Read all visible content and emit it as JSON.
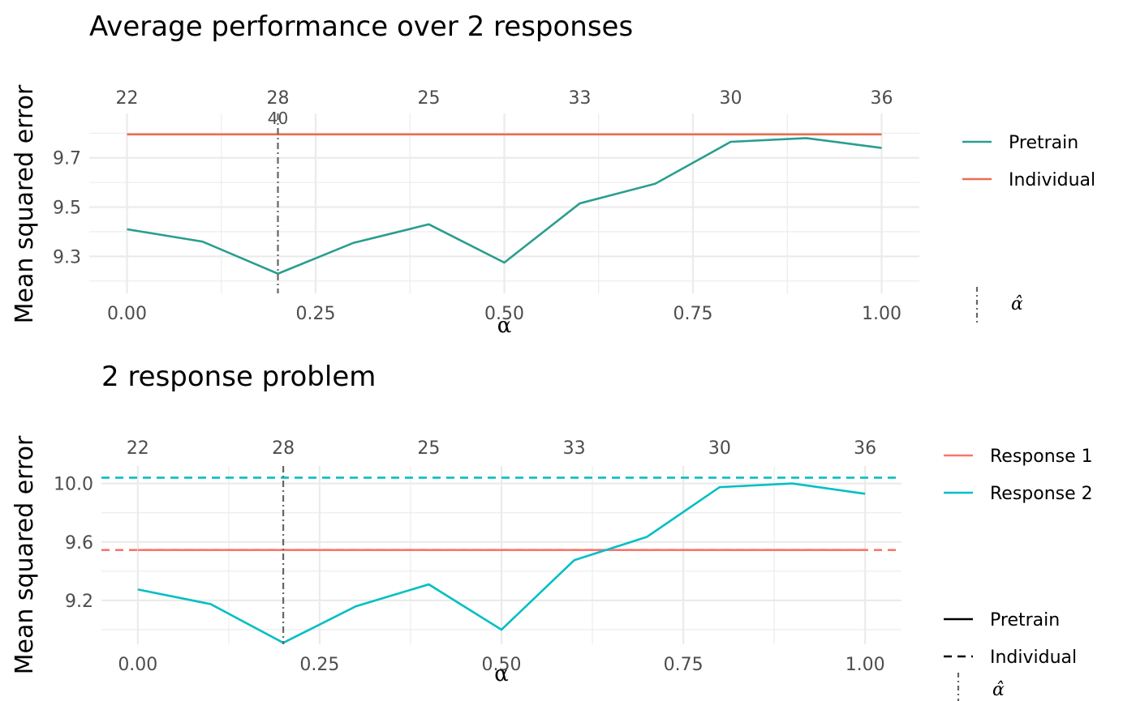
{
  "chart_data": [
    {
      "type": "line",
      "title": "Average performance over 2 responses",
      "xlabel": "α",
      "ylabel": "Mean squared error",
      "xlim": [
        -0.05,
        1.05
      ],
      "ylim": [
        9.15,
        9.88
      ],
      "x_ticks": [
        "0.00",
        "0.25",
        "0.50",
        "0.75",
        "1.00"
      ],
      "x_tick_values": [
        0,
        0.25,
        0.5,
        0.75,
        1.0
      ],
      "y_ticks": [
        "9.3",
        "9.5",
        "9.7"
      ],
      "y_tick_values": [
        9.3,
        9.5,
        9.7
      ],
      "top_axis_labels": [
        "22",
        "28",
        "25",
        "33",
        "30",
        "36"
      ],
      "top_axis_values": [
        0,
        0.2,
        0.4,
        0.6,
        0.8,
        1.0
      ],
      "grid": true,
      "x": [
        0,
        0.1,
        0.2,
        0.3,
        0.4,
        0.5,
        0.6,
        0.7,
        0.8,
        0.9,
        1.0
      ],
      "series": [
        {
          "name": "Pretrain",
          "color": "#2a9d8f",
          "dash": "solid",
          "values": [
            9.41,
            9.36,
            9.23,
            9.355,
            9.43,
            9.275,
            9.515,
            9.595,
            9.765,
            9.78,
            9.74
          ]
        },
        {
          "name": "Individual",
          "color": "#e76f51",
          "dash": "solid",
          "values": [
            9.795,
            9.795,
            9.795,
            9.795,
            9.795,
            9.795,
            9.795,
            9.795,
            9.795,
            9.795,
            9.795
          ]
        }
      ],
      "vline": {
        "x": 0.2,
        "label": "40",
        "legend_label": "α̂",
        "color": "#666666"
      },
      "legend_placement": "right",
      "legend": [
        {
          "label": "Pretrain",
          "color": "#2a9d8f",
          "style": "solid"
        },
        {
          "label": "Individual",
          "color": "#e76f51",
          "style": "solid"
        }
      ]
    },
    {
      "type": "line",
      "title": "2 response problem",
      "xlabel": "α",
      "ylabel": "Mean squared error",
      "xlim": [
        -0.05,
        1.05
      ],
      "ylim": [
        8.9,
        10.12
      ],
      "x_ticks": [
        "0.00",
        "0.25",
        "0.50",
        "0.75",
        "1.00"
      ],
      "x_tick_values": [
        0,
        0.25,
        0.5,
        0.75,
        1.0
      ],
      "y_ticks": [
        "9.2",
        "9.6",
        "10.0"
      ],
      "y_tick_values": [
        9.2,
        9.6,
        10.0
      ],
      "top_axis_labels": [
        "22",
        "28",
        "25",
        "33",
        "30",
        "36"
      ],
      "top_axis_values": [
        0,
        0.2,
        0.4,
        0.6,
        0.8,
        1.0
      ],
      "grid": true,
      "x": [
        0,
        0.1,
        0.2,
        0.3,
        0.4,
        0.5,
        0.6,
        0.7,
        0.8,
        0.9,
        1.0
      ],
      "series": [
        {
          "name": "Response 1 Pretrain",
          "color": "#f8766d",
          "dash": "solid",
          "values": [
            9.545,
            9.545,
            9.545,
            9.545,
            9.545,
            9.545,
            9.545,
            9.545,
            9.545,
            9.545,
            9.545
          ]
        },
        {
          "name": "Response 1 Individual",
          "color": "#f8766d",
          "dash": "dashed",
          "values": [
            9.545,
            9.545,
            9.545,
            9.545,
            9.545,
            9.545,
            9.545,
            9.545,
            9.545,
            9.545,
            9.545
          ]
        },
        {
          "name": "Response 2 Pretrain",
          "color": "#00bfc4",
          "dash": "solid",
          "values": [
            9.275,
            9.175,
            8.91,
            9.16,
            9.31,
            9.0,
            9.475,
            9.635,
            9.975,
            10.0,
            9.93
          ]
        },
        {
          "name": "Response 2 Individual",
          "color": "#00bfc4",
          "dash": "dashed",
          "values": [
            10.04,
            10.04,
            10.04,
            10.04,
            10.04,
            10.04,
            10.04,
            10.04,
            10.04,
            10.04,
            10.04
          ]
        }
      ],
      "vline": {
        "x": 0.2,
        "legend_label": "α̂",
        "color": "#666666"
      },
      "legend_placement": "right",
      "legend": [
        {
          "label": "Response 1",
          "color": "#f8766d",
          "style": "solid"
        },
        {
          "label": "Response 2",
          "color": "#00bfc4",
          "style": "solid"
        }
      ],
      "linetype_legend": [
        {
          "label": "Pretrain",
          "style": "solid"
        },
        {
          "label": "Individual",
          "style": "dashed"
        }
      ]
    }
  ]
}
